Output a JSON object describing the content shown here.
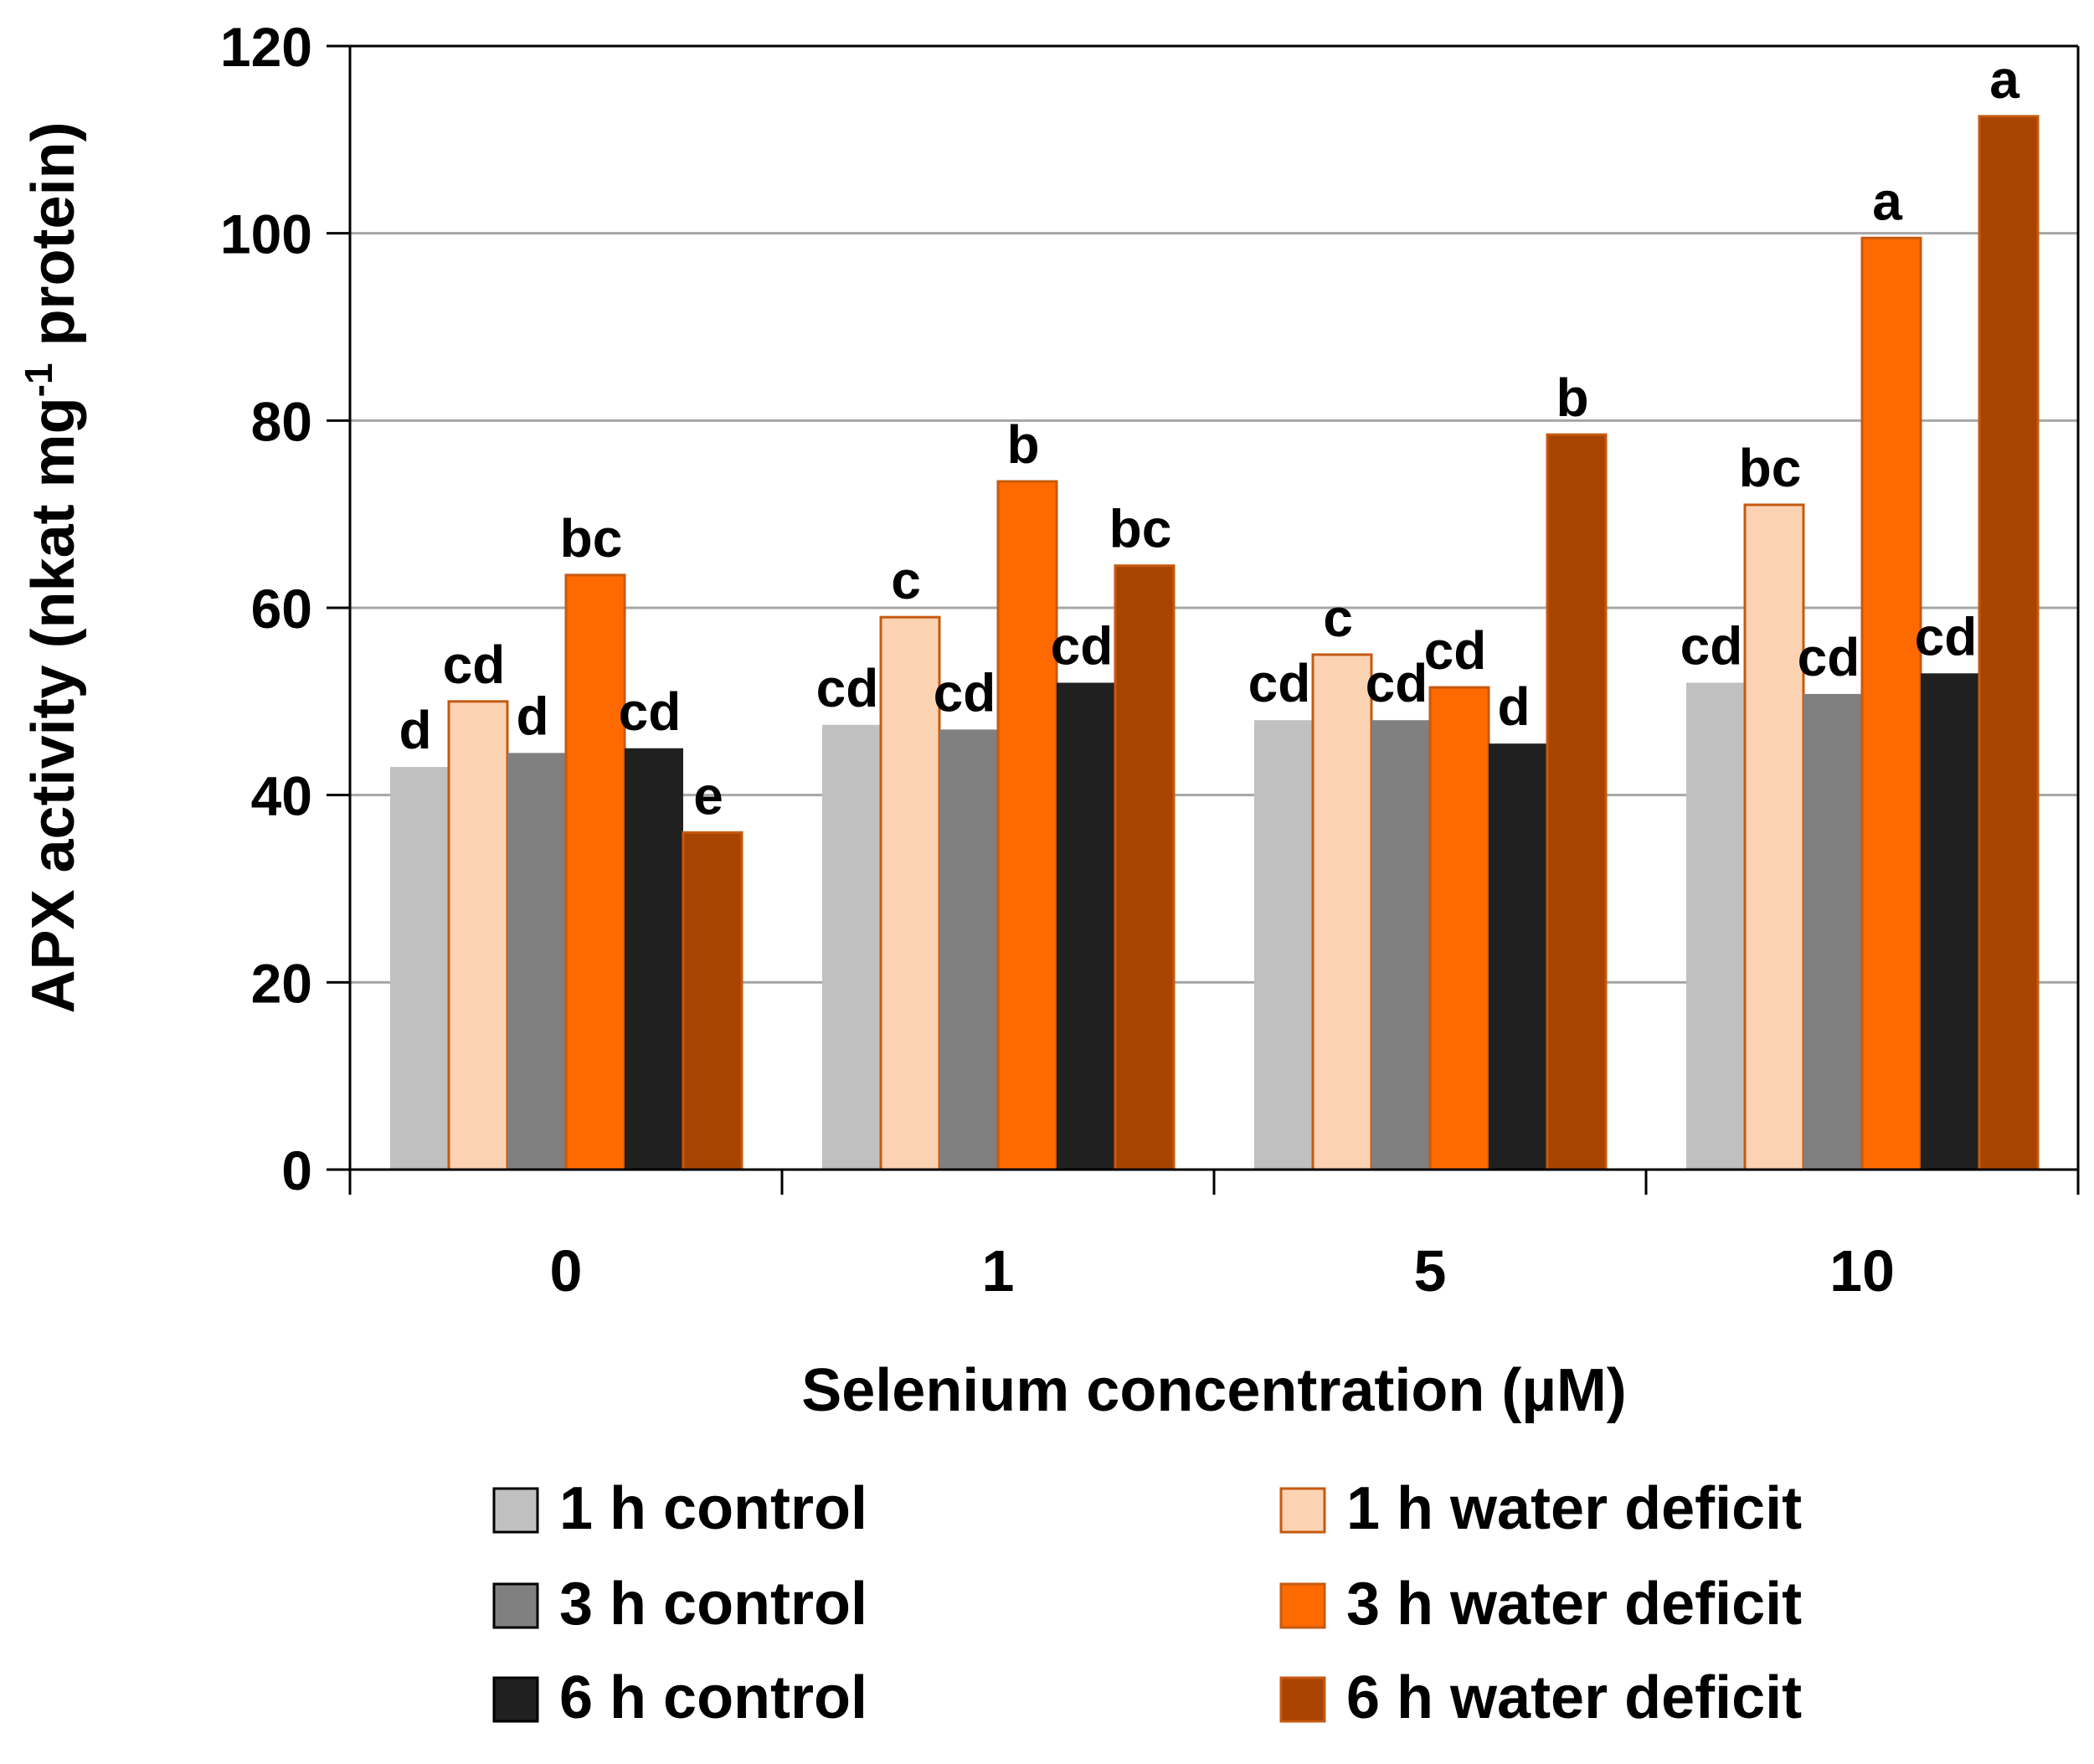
{
  "chart_data": {
    "type": "bar",
    "title": "",
    "xlabel": "Selenium concentration (µM)",
    "ylabel": {
      "prefix": "APX activity (nkat mg",
      "superscript": "-1",
      "suffix": " protein)"
    },
    "ylim": [
      0,
      120
    ],
    "yticks": [
      0,
      20,
      40,
      60,
      80,
      100,
      120
    ],
    "grid": true,
    "categories": [
      "0",
      "1",
      "5",
      "10"
    ],
    "series": [
      {
        "name": "1 h control",
        "color": "#C0C0C0",
        "values": [
          43,
          47.5,
          48,
          52
        ],
        "labels": [
          "d",
          "cd",
          "cd",
          "cd"
        ]
      },
      {
        "name": "1 h water deficit",
        "color": "#FBD3B3",
        "values": [
          50,
          59,
          55,
          71
        ],
        "labels": [
          "cd",
          "c",
          "c",
          "bc"
        ]
      },
      {
        "name": "3 h control",
        "color": "#808080",
        "values": [
          44.5,
          47,
          48,
          50.8
        ],
        "labels": [
          "d",
          "cd",
          "cd",
          "cd"
        ]
      },
      {
        "name": "3 h water deficit",
        "color": "#FF6A00",
        "values": [
          63.5,
          73.5,
          51.5,
          99.5
        ],
        "labels": [
          "bc",
          "b",
          "cd",
          "a"
        ]
      },
      {
        "name": "6 h control",
        "color": "#202020",
        "values": [
          45,
          52,
          45.5,
          53
        ],
        "labels": [
          "cd",
          "cd",
          "d",
          "cd"
        ]
      },
      {
        "name": "6 h water deficit",
        "color": "#A84300",
        "values": [
          36,
          64.5,
          78.5,
          112.5
        ],
        "labels": [
          "e",
          "bc",
          "b",
          "a"
        ]
      }
    ],
    "legend": {
      "placement": "bottom",
      "columns": 2
    }
  },
  "colors": {
    "axis": "#000000",
    "gridline": "#A6A6A6",
    "water_deficit_edge": "#C55A11"
  }
}
